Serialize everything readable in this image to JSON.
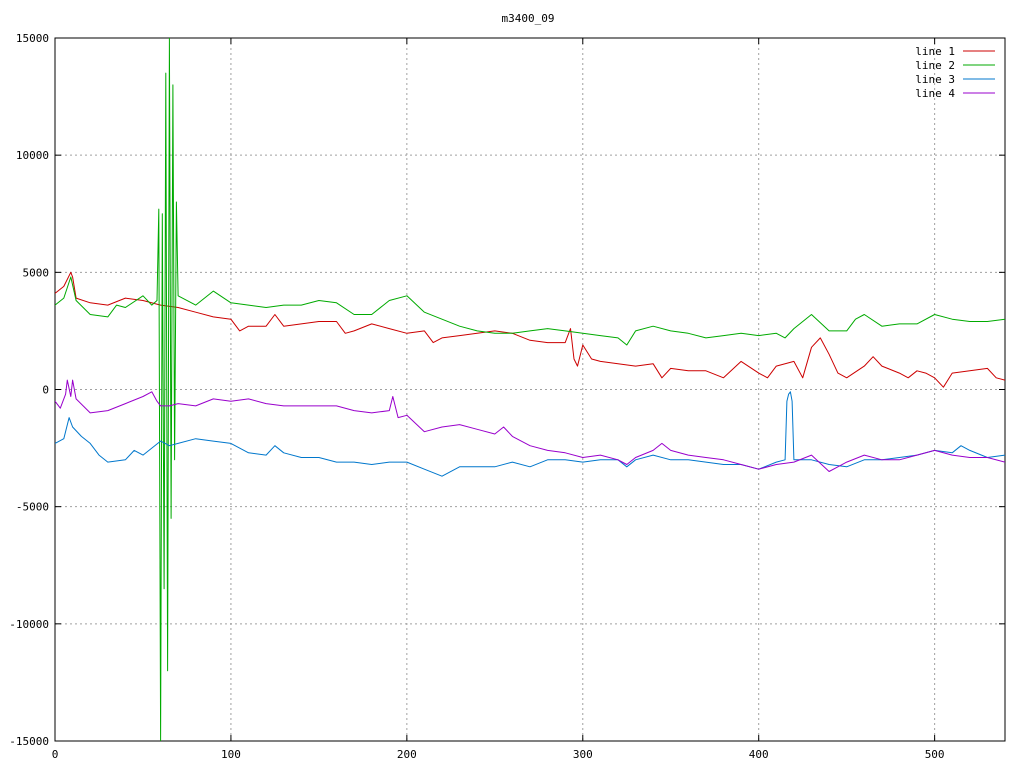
{
  "chart_data": {
    "type": "line",
    "title": "m3400_09",
    "xlabel": "",
    "ylabel": "",
    "xlim": [
      0,
      540
    ],
    "ylim": [
      -15000,
      15000
    ],
    "x_ticks": [
      0,
      100,
      200,
      300,
      400,
      500
    ],
    "y_ticks": [
      -15000,
      -10000,
      -5000,
      0,
      5000,
      10000,
      15000
    ],
    "grid": true,
    "legend_position": "top-right",
    "series": [
      {
        "name": "line 1",
        "color": "#cc0000",
        "points": [
          [
            0,
            4100
          ],
          [
            5,
            4400
          ],
          [
            9,
            5000
          ],
          [
            10,
            4800
          ],
          [
            12,
            3900
          ],
          [
            20,
            3700
          ],
          [
            30,
            3600
          ],
          [
            40,
            3900
          ],
          [
            50,
            3800
          ],
          [
            60,
            3600
          ],
          [
            70,
            3500
          ],
          [
            80,
            3300
          ],
          [
            90,
            3100
          ],
          [
            100,
            3000
          ],
          [
            105,
            2500
          ],
          [
            110,
            2700
          ],
          [
            120,
            2700
          ],
          [
            125,
            3200
          ],
          [
            130,
            2700
          ],
          [
            140,
            2800
          ],
          [
            150,
            2900
          ],
          [
            160,
            2900
          ],
          [
            165,
            2400
          ],
          [
            170,
            2500
          ],
          [
            180,
            2800
          ],
          [
            190,
            2600
          ],
          [
            200,
            2400
          ],
          [
            210,
            2500
          ],
          [
            215,
            2000
          ],
          [
            220,
            2200
          ],
          [
            230,
            2300
          ],
          [
            240,
            2400
          ],
          [
            250,
            2500
          ],
          [
            260,
            2400
          ],
          [
            270,
            2100
          ],
          [
            280,
            2000
          ],
          [
            290,
            2000
          ],
          [
            293,
            2600
          ],
          [
            295,
            1300
          ],
          [
            297,
            1000
          ],
          [
            300,
            1900
          ],
          [
            305,
            1300
          ],
          [
            310,
            1200
          ],
          [
            320,
            1100
          ],
          [
            330,
            1000
          ],
          [
            340,
            1100
          ],
          [
            345,
            500
          ],
          [
            350,
            900
          ],
          [
            360,
            800
          ],
          [
            370,
            800
          ],
          [
            380,
            500
          ],
          [
            390,
            1200
          ],
          [
            400,
            700
          ],
          [
            405,
            500
          ],
          [
            410,
            1000
          ],
          [
            420,
            1200
          ],
          [
            425,
            500
          ],
          [
            430,
            1800
          ],
          [
            435,
            2200
          ],
          [
            440,
            1500
          ],
          [
            445,
            700
          ],
          [
            450,
            500
          ],
          [
            460,
            1000
          ],
          [
            465,
            1400
          ],
          [
            470,
            1000
          ],
          [
            480,
            700
          ],
          [
            485,
            500
          ],
          [
            490,
            800
          ],
          [
            495,
            700
          ],
          [
            500,
            500
          ],
          [
            505,
            100
          ],
          [
            510,
            700
          ],
          [
            520,
            800
          ],
          [
            530,
            900
          ],
          [
            535,
            500
          ],
          [
            540,
            400
          ]
        ]
      },
      {
        "name": "line 2",
        "color": "#00aa00",
        "points": [
          [
            0,
            3600
          ],
          [
            5,
            3900
          ],
          [
            9,
            4800
          ],
          [
            12,
            3800
          ],
          [
            20,
            3200
          ],
          [
            30,
            3100
          ],
          [
            35,
            3600
          ],
          [
            40,
            3500
          ],
          [
            50,
            4000
          ],
          [
            55,
            3600
          ],
          [
            58,
            3800
          ],
          [
            59,
            7700
          ],
          [
            60,
            -15000
          ],
          [
            61,
            7500
          ],
          [
            62,
            -8500
          ],
          [
            63,
            13500
          ],
          [
            64,
            -12000
          ],
          [
            65,
            15000
          ],
          [
            66,
            -5500
          ],
          [
            67,
            13000
          ],
          [
            68,
            -3000
          ],
          [
            69,
            8000
          ],
          [
            70,
            4000
          ],
          [
            80,
            3600
          ],
          [
            90,
            4200
          ],
          [
            100,
            3700
          ],
          [
            110,
            3600
          ],
          [
            120,
            3500
          ],
          [
            130,
            3600
          ],
          [
            140,
            3600
          ],
          [
            150,
            3800
          ],
          [
            160,
            3700
          ],
          [
            170,
            3200
          ],
          [
            180,
            3200
          ],
          [
            190,
            3800
          ],
          [
            200,
            4000
          ],
          [
            210,
            3300
          ],
          [
            220,
            3000
          ],
          [
            230,
            2700
          ],
          [
            240,
            2500
          ],
          [
            250,
            2400
          ],
          [
            260,
            2400
          ],
          [
            270,
            2500
          ],
          [
            280,
            2600
          ],
          [
            290,
            2500
          ],
          [
            300,
            2400
          ],
          [
            310,
            2300
          ],
          [
            320,
            2200
          ],
          [
            325,
            1900
          ],
          [
            330,
            2500
          ],
          [
            340,
            2700
          ],
          [
            350,
            2500
          ],
          [
            360,
            2400
          ],
          [
            370,
            2200
          ],
          [
            380,
            2300
          ],
          [
            390,
            2400
          ],
          [
            400,
            2300
          ],
          [
            410,
            2400
          ],
          [
            415,
            2200
          ],
          [
            420,
            2600
          ],
          [
            430,
            3200
          ],
          [
            440,
            2500
          ],
          [
            450,
            2500
          ],
          [
            455,
            3000
          ],
          [
            460,
            3200
          ],
          [
            470,
            2700
          ],
          [
            480,
            2800
          ],
          [
            490,
            2800
          ],
          [
            500,
            3200
          ],
          [
            510,
            3000
          ],
          [
            520,
            2900
          ],
          [
            530,
            2900
          ],
          [
            540,
            3000
          ]
        ]
      },
      {
        "name": "line 3",
        "color": "#0077cc",
        "points": [
          [
            0,
            -2300
          ],
          [
            5,
            -2100
          ],
          [
            8,
            -1200
          ],
          [
            10,
            -1600
          ],
          [
            15,
            -2000
          ],
          [
            20,
            -2300
          ],
          [
            25,
            -2800
          ],
          [
            30,
            -3100
          ],
          [
            40,
            -3000
          ],
          [
            45,
            -2600
          ],
          [
            50,
            -2800
          ],
          [
            55,
            -2500
          ],
          [
            60,
            -2200
          ],
          [
            65,
            -2400
          ],
          [
            70,
            -2300
          ],
          [
            80,
            -2100
          ],
          [
            90,
            -2200
          ],
          [
            100,
            -2300
          ],
          [
            110,
            -2700
          ],
          [
            120,
            -2800
          ],
          [
            125,
            -2400
          ],
          [
            130,
            -2700
          ],
          [
            140,
            -2900
          ],
          [
            150,
            -2900
          ],
          [
            160,
            -3100
          ],
          [
            170,
            -3100
          ],
          [
            180,
            -3200
          ],
          [
            190,
            -3100
          ],
          [
            200,
            -3100
          ],
          [
            210,
            -3400
          ],
          [
            220,
            -3700
          ],
          [
            230,
            -3300
          ],
          [
            240,
            -3300
          ],
          [
            250,
            -3300
          ],
          [
            260,
            -3100
          ],
          [
            270,
            -3300
          ],
          [
            280,
            -3000
          ],
          [
            290,
            -3000
          ],
          [
            300,
            -3100
          ],
          [
            310,
            -3000
          ],
          [
            320,
            -3000
          ],
          [
            325,
            -3300
          ],
          [
            330,
            -3000
          ],
          [
            340,
            -2800
          ],
          [
            350,
            -3000
          ],
          [
            360,
            -3000
          ],
          [
            370,
            -3100
          ],
          [
            380,
            -3200
          ],
          [
            390,
            -3200
          ],
          [
            400,
            -3400
          ],
          [
            410,
            -3100
          ],
          [
            415,
            -3000
          ],
          [
            416,
            -500
          ],
          [
            417,
            -200
          ],
          [
            418,
            -100
          ],
          [
            419,
            -500
          ],
          [
            420,
            -3000
          ],
          [
            430,
            -3000
          ],
          [
            440,
            -3200
          ],
          [
            450,
            -3300
          ],
          [
            460,
            -3000
          ],
          [
            470,
            -3000
          ],
          [
            480,
            -2900
          ],
          [
            490,
            -2800
          ],
          [
            500,
            -2600
          ],
          [
            510,
            -2700
          ],
          [
            515,
            -2400
          ],
          [
            520,
            -2600
          ],
          [
            530,
            -2900
          ],
          [
            540,
            -2800
          ]
        ]
      },
      {
        "name": "line 4",
        "color": "#9900cc",
        "points": [
          [
            0,
            -500
          ],
          [
            3,
            -800
          ],
          [
            6,
            -200
          ],
          [
            7,
            400
          ],
          [
            9,
            -300
          ],
          [
            10,
            400
          ],
          [
            12,
            -400
          ],
          [
            20,
            -1000
          ],
          [
            30,
            -900
          ],
          [
            40,
            -600
          ],
          [
            50,
            -300
          ],
          [
            55,
            -100
          ],
          [
            58,
            -500
          ],
          [
            60,
            -700
          ],
          [
            65,
            -700
          ],
          [
            70,
            -600
          ],
          [
            80,
            -700
          ],
          [
            90,
            -400
          ],
          [
            100,
            -500
          ],
          [
            110,
            -400
          ],
          [
            120,
            -600
          ],
          [
            130,
            -700
          ],
          [
            140,
            -700
          ],
          [
            150,
            -700
          ],
          [
            160,
            -700
          ],
          [
            170,
            -900
          ],
          [
            180,
            -1000
          ],
          [
            190,
            -900
          ],
          [
            192,
            -300
          ],
          [
            195,
            -1200
          ],
          [
            200,
            -1100
          ],
          [
            210,
            -1800
          ],
          [
            220,
            -1600
          ],
          [
            230,
            -1500
          ],
          [
            240,
            -1700
          ],
          [
            250,
            -1900
          ],
          [
            255,
            -1600
          ],
          [
            260,
            -2000
          ],
          [
            270,
            -2400
          ],
          [
            280,
            -2600
          ],
          [
            290,
            -2700
          ],
          [
            300,
            -2900
          ],
          [
            310,
            -2800
          ],
          [
            320,
            -3000
          ],
          [
            325,
            -3200
          ],
          [
            330,
            -2900
          ],
          [
            340,
            -2600
          ],
          [
            345,
            -2300
          ],
          [
            350,
            -2600
          ],
          [
            360,
            -2800
          ],
          [
            370,
            -2900
          ],
          [
            380,
            -3000
          ],
          [
            390,
            -3200
          ],
          [
            400,
            -3400
          ],
          [
            410,
            -3200
          ],
          [
            420,
            -3100
          ],
          [
            430,
            -2800
          ],
          [
            440,
            -3500
          ],
          [
            445,
            -3300
          ],
          [
            450,
            -3100
          ],
          [
            460,
            -2800
          ],
          [
            470,
            -3000
          ],
          [
            480,
            -3000
          ],
          [
            490,
            -2800
          ],
          [
            500,
            -2600
          ],
          [
            510,
            -2800
          ],
          [
            520,
            -2900
          ],
          [
            530,
            -2900
          ],
          [
            540,
            -3100
          ]
        ]
      }
    ]
  }
}
